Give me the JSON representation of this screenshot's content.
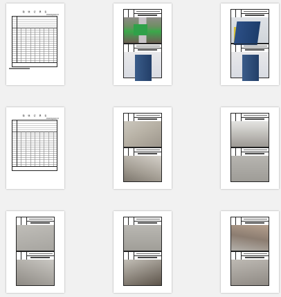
{
  "thumbnails": [
    {
      "type": "table",
      "title": "验 收 记 录 表",
      "subtitle": "检验批质量验收记录"
    },
    {
      "type": "photos",
      "images": [
        "site-board",
        "building-scaffold"
      ]
    },
    {
      "type": "photos",
      "images": [
        "building-crane",
        "building-front"
      ]
    },
    {
      "type": "table",
      "title": "验 收 记 录 表",
      "subtitle": "检验批质量验收记录"
    },
    {
      "type": "photos",
      "images": [
        "room-corner",
        "room-ceiling"
      ]
    },
    {
      "type": "photos",
      "images": [
        "room-wall",
        "room-floor"
      ]
    },
    {
      "type": "photos",
      "images": [
        "room-wall-2",
        "room-corner-2"
      ]
    },
    {
      "type": "photos",
      "images": [
        "room-wall-3",
        "room-floor-2"
      ]
    },
    {
      "type": "photos",
      "images": [
        "room-stairs",
        "room-doorway"
      ]
    }
  ]
}
